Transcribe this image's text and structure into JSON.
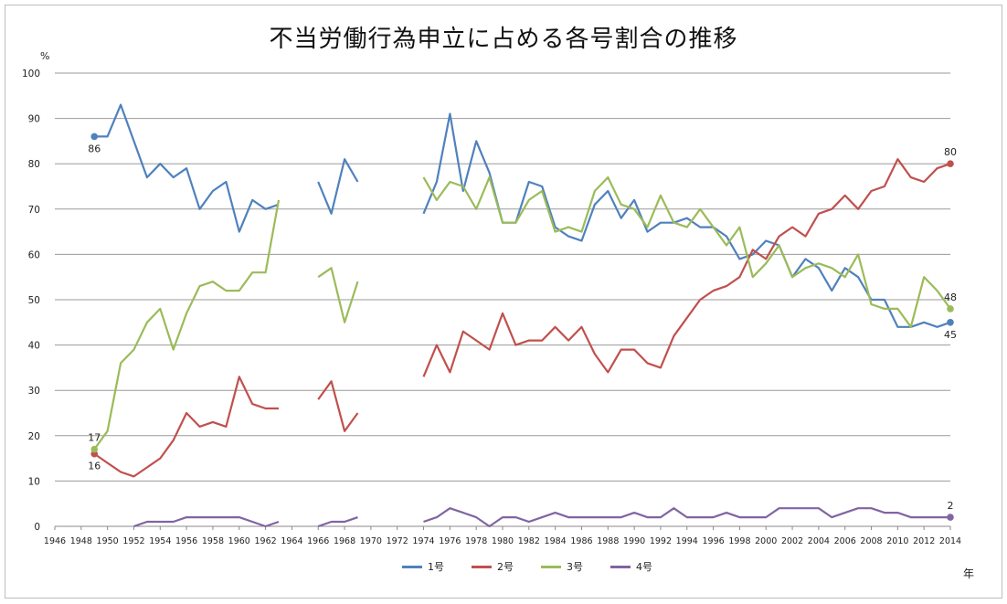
{
  "title": "不当労働行為申立に占める各号割合の推移",
  "y_unit": "%",
  "x_unit": "年",
  "chart_data": {
    "type": "line",
    "title": "不当労働行為申立に占める各号割合の推移",
    "ylim": [
      0,
      100
    ],
    "xlim": [
      1946,
      2014
    ],
    "y_ticks": [
      0,
      10,
      20,
      30,
      40,
      50,
      60,
      70,
      80,
      90,
      100
    ],
    "x_ticks": [
      1946,
      1948,
      1950,
      1952,
      1954,
      1956,
      1958,
      1960,
      1962,
      1964,
      1966,
      1968,
      1970,
      1972,
      1974,
      1976,
      1978,
      1980,
      1982,
      1984,
      1986,
      1988,
      1990,
      1992,
      1994,
      1996,
      1998,
      2000,
      2002,
      2004,
      2006,
      2008,
      2010,
      2012,
      2014
    ],
    "grid": "horizontal",
    "legend_position": "bottom",
    "series": [
      {
        "name": "1号",
        "color": "#4f81bd",
        "points": [
          [
            1949,
            86
          ],
          [
            1950,
            86
          ],
          [
            1951,
            93
          ],
          [
            1952,
            85
          ],
          [
            1953,
            77
          ],
          [
            1954,
            80
          ],
          [
            1955,
            77
          ],
          [
            1956,
            79
          ],
          [
            1957,
            70
          ],
          [
            1958,
            74
          ],
          [
            1959,
            76
          ],
          [
            1960,
            65
          ],
          [
            1961,
            72
          ],
          [
            1962,
            70
          ],
          [
            1963,
            71
          ],
          null,
          [
            1966,
            76
          ],
          [
            1967,
            69
          ],
          [
            1968,
            81
          ],
          [
            1969,
            76
          ],
          null,
          [
            1974,
            69
          ],
          [
            1975,
            76
          ],
          [
            1976,
            91
          ],
          [
            1977,
            74
          ],
          [
            1978,
            85
          ],
          [
            1979,
            78
          ],
          [
            1980,
            67
          ],
          [
            1981,
            67
          ],
          [
            1982,
            76
          ],
          [
            1983,
            75
          ],
          [
            1984,
            66
          ],
          [
            1985,
            64
          ],
          [
            1986,
            63
          ],
          [
            1987,
            71
          ],
          [
            1988,
            74
          ],
          [
            1989,
            68
          ],
          [
            1990,
            72
          ],
          [
            1991,
            65
          ],
          [
            1992,
            67
          ],
          [
            1993,
            67
          ],
          [
            1994,
            68
          ],
          [
            1995,
            66
          ],
          [
            1996,
            66
          ],
          [
            1997,
            64
          ],
          [
            1998,
            59
          ],
          [
            1999,
            60
          ],
          [
            2000,
            63
          ],
          [
            2001,
            62
          ],
          [
            2002,
            55
          ],
          [
            2003,
            59
          ],
          [
            2004,
            57
          ],
          [
            2005,
            52
          ],
          [
            2006,
            57
          ],
          [
            2007,
            55
          ],
          [
            2008,
            50
          ],
          [
            2009,
            50
          ],
          [
            2010,
            44
          ],
          [
            2011,
            44
          ],
          [
            2012,
            45
          ],
          [
            2013,
            44
          ],
          [
            2014,
            45
          ]
        ]
      },
      {
        "name": "2号",
        "color": "#c0504d",
        "points": [
          [
            1949,
            16
          ],
          [
            1950,
            14
          ],
          [
            1951,
            12
          ],
          [
            1952,
            11
          ],
          [
            1953,
            13
          ],
          [
            1954,
            15
          ],
          [
            1955,
            19
          ],
          [
            1956,
            25
          ],
          [
            1957,
            22
          ],
          [
            1958,
            23
          ],
          [
            1959,
            22
          ],
          [
            1960,
            33
          ],
          [
            1961,
            27
          ],
          [
            1962,
            26
          ],
          [
            1963,
            26
          ],
          null,
          [
            1966,
            28
          ],
          [
            1967,
            32
          ],
          [
            1968,
            21
          ],
          [
            1969,
            25
          ],
          null,
          [
            1974,
            33
          ],
          [
            1975,
            40
          ],
          [
            1976,
            34
          ],
          [
            1977,
            43
          ],
          [
            1978,
            41
          ],
          [
            1979,
            39
          ],
          [
            1980,
            47
          ],
          [
            1981,
            40
          ],
          [
            1982,
            41
          ],
          [
            1983,
            41
          ],
          [
            1984,
            44
          ],
          [
            1985,
            41
          ],
          [
            1986,
            44
          ],
          [
            1987,
            38
          ],
          [
            1988,
            34
          ],
          [
            1989,
            39
          ],
          [
            1990,
            39
          ],
          [
            1991,
            36
          ],
          [
            1992,
            35
          ],
          [
            1993,
            42
          ],
          [
            1994,
            46
          ],
          [
            1995,
            50
          ],
          [
            1996,
            52
          ],
          [
            1997,
            53
          ],
          [
            1998,
            55
          ],
          [
            1999,
            61
          ],
          [
            2000,
            59
          ],
          [
            2001,
            64
          ],
          [
            2002,
            66
          ],
          [
            2003,
            64
          ],
          [
            2004,
            69
          ],
          [
            2005,
            70
          ],
          [
            2006,
            73
          ],
          [
            2007,
            70
          ],
          [
            2008,
            74
          ],
          [
            2009,
            75
          ],
          [
            2010,
            81
          ],
          [
            2011,
            77
          ],
          [
            2012,
            76
          ],
          [
            2013,
            79
          ],
          [
            2014,
            80
          ]
        ]
      },
      {
        "name": "3号",
        "color": "#9bbb59",
        "points": [
          [
            1949,
            17
          ],
          [
            1950,
            21
          ],
          [
            1951,
            36
          ],
          [
            1952,
            39
          ],
          [
            1953,
            45
          ],
          [
            1954,
            48
          ],
          [
            1955,
            39
          ],
          [
            1956,
            47
          ],
          [
            1957,
            53
          ],
          [
            1958,
            54
          ],
          [
            1959,
            52
          ],
          [
            1960,
            52
          ],
          [
            1961,
            56
          ],
          [
            1962,
            56
          ],
          [
            1963,
            72
          ],
          null,
          [
            1966,
            55
          ],
          [
            1967,
            57
          ],
          [
            1968,
            45
          ],
          [
            1969,
            54
          ],
          null,
          [
            1974,
            77
          ],
          [
            1975,
            72
          ],
          [
            1976,
            76
          ],
          [
            1977,
            75
          ],
          [
            1978,
            70
          ],
          [
            1979,
            77
          ],
          [
            1980,
            67
          ],
          [
            1981,
            67
          ],
          [
            1982,
            72
          ],
          [
            1983,
            74
          ],
          [
            1984,
            65
          ],
          [
            1985,
            66
          ],
          [
            1986,
            65
          ],
          [
            1987,
            74
          ],
          [
            1988,
            77
          ],
          [
            1989,
            71
          ],
          [
            1990,
            70
          ],
          [
            1991,
            66
          ],
          [
            1992,
            73
          ],
          [
            1993,
            67
          ],
          [
            1994,
            66
          ],
          [
            1995,
            70
          ],
          [
            1996,
            66
          ],
          [
            1997,
            62
          ],
          [
            1998,
            66
          ],
          [
            1999,
            55
          ],
          [
            2000,
            58
          ],
          [
            2001,
            62
          ],
          [
            2002,
            55
          ],
          [
            2003,
            57
          ],
          [
            2004,
            58
          ],
          [
            2005,
            57
          ],
          [
            2006,
            55
          ],
          [
            2007,
            60
          ],
          [
            2008,
            49
          ],
          [
            2009,
            48
          ],
          [
            2010,
            48
          ],
          [
            2011,
            44
          ],
          [
            2012,
            55
          ],
          [
            2013,
            52
          ],
          [
            2014,
            48
          ]
        ]
      },
      {
        "name": "4号",
        "color": "#8064a2",
        "points": [
          [
            1952,
            0
          ],
          [
            1953,
            1
          ],
          [
            1954,
            1
          ],
          [
            1955,
            1
          ],
          [
            1956,
            2
          ],
          [
            1957,
            2
          ],
          [
            1958,
            2
          ],
          [
            1959,
            2
          ],
          [
            1960,
            2
          ],
          [
            1961,
            1
          ],
          [
            1962,
            0
          ],
          [
            1963,
            1
          ],
          null,
          [
            1966,
            0
          ],
          [
            1967,
            1
          ],
          [
            1968,
            1
          ],
          [
            1969,
            2
          ],
          null,
          [
            1974,
            1
          ],
          [
            1975,
            2
          ],
          [
            1976,
            4
          ],
          [
            1977,
            3
          ],
          [
            1978,
            2
          ],
          [
            1979,
            0
          ],
          [
            1980,
            2
          ],
          [
            1981,
            2
          ],
          [
            1982,
            1
          ],
          [
            1983,
            2
          ],
          [
            1984,
            3
          ],
          [
            1985,
            2
          ],
          [
            1986,
            2
          ],
          [
            1987,
            2
          ],
          [
            1988,
            2
          ],
          [
            1989,
            2
          ],
          [
            1990,
            3
          ],
          [
            1991,
            2
          ],
          [
            1992,
            2
          ],
          [
            1993,
            4
          ],
          [
            1994,
            2
          ],
          [
            1995,
            2
          ],
          [
            1996,
            2
          ],
          [
            1997,
            3
          ],
          [
            1998,
            2
          ],
          [
            1999,
            2
          ],
          [
            2000,
            2
          ],
          [
            2001,
            4
          ],
          [
            2002,
            4
          ],
          [
            2003,
            4
          ],
          [
            2004,
            4
          ],
          [
            2005,
            2
          ],
          [
            2006,
            3
          ],
          [
            2007,
            4
          ],
          [
            2008,
            4
          ],
          [
            2009,
            3
          ],
          [
            2010,
            3
          ],
          [
            2011,
            2
          ],
          [
            2012,
            2
          ],
          [
            2013,
            2
          ],
          [
            2014,
            2
          ]
        ]
      }
    ],
    "annotations": [
      {
        "series": "1号",
        "x": 1949,
        "y": 86,
        "text": "86",
        "pos": "below"
      },
      {
        "series": "2号",
        "x": 1949,
        "y": 16,
        "text": "16",
        "pos": "below"
      },
      {
        "series": "3号",
        "x": 1949,
        "y": 17,
        "text": "17",
        "pos": "above"
      },
      {
        "series": "1号",
        "x": 2014,
        "y": 45,
        "text": "45",
        "pos": "below"
      },
      {
        "series": "2号",
        "x": 2014,
        "y": 80,
        "text": "80",
        "pos": "above"
      },
      {
        "series": "3号",
        "x": 2014,
        "y": 48,
        "text": "48",
        "pos": "above"
      },
      {
        "series": "4号",
        "x": 2014,
        "y": 2,
        "text": "2",
        "pos": "above"
      }
    ]
  }
}
